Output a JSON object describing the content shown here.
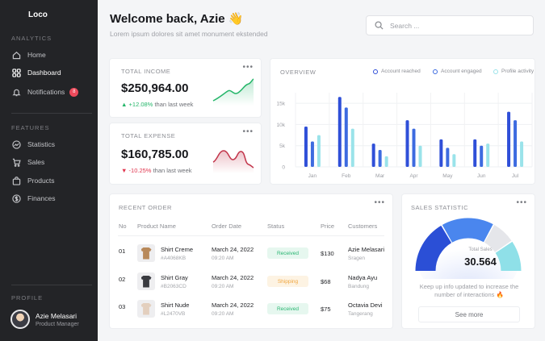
{
  "app": {
    "name": "Loco"
  },
  "sidebar": {
    "analytics_label": "ANALYTICS",
    "features_label": "FEATURES",
    "profile_label": "PROFILE",
    "analytics_items": [
      {
        "label": "Home",
        "icon": "home-icon"
      },
      {
        "label": "Dashboard",
        "icon": "dashboard-icon",
        "active": true
      },
      {
        "label": "Notifications",
        "icon": "bell-icon",
        "badge": "8"
      }
    ],
    "feature_items": [
      {
        "label": "Statistics",
        "icon": "trend-icon"
      },
      {
        "label": "Sales",
        "icon": "cart-icon"
      },
      {
        "label": "Products",
        "icon": "bag-icon"
      },
      {
        "label": "Finances",
        "icon": "dollar-icon"
      }
    ],
    "profile": {
      "name": "Azie Melasari",
      "role": "Product Manager"
    }
  },
  "header": {
    "welcome": "Welcome back,",
    "user": "Azie",
    "emoji": "👋",
    "subtitle": "Lorem ipsum dolores sit amet monument ekstended",
    "search_placeholder": "Search ..."
  },
  "income": {
    "title": "TOTAL INCOME",
    "value": "$250,964.00",
    "delta": "+12.08%",
    "delta_suffix": "than last week",
    "trend": "up",
    "color": "#25b66a"
  },
  "expense": {
    "title": "TOTAL EXPENSE",
    "value": "$160,785.00",
    "delta": "-10.25%",
    "delta_suffix": "than last week",
    "trend": "down",
    "color": "#c2354b"
  },
  "overview": {
    "title": "OVERVIEW",
    "legend": [
      {
        "name": "Account reached",
        "color": "#2f4fd8"
      },
      {
        "name": "Account engaged",
        "color": "#3d6be0"
      },
      {
        "name": "Profile activity",
        "color": "#9ae3ea"
      }
    ]
  },
  "chart_data": {
    "type": "bar",
    "categories": [
      "Jan",
      "Feb",
      "Mar",
      "Apr",
      "May",
      "Jun",
      "Jul"
    ],
    "series": [
      {
        "name": "Account reached",
        "color": "#2f4fd8",
        "values": [
          9500,
          16500,
          5500,
          11000,
          6500,
          6500,
          13000
        ]
      },
      {
        "name": "Account engaged",
        "color": "#3d6be0",
        "values": [
          6000,
          14000,
          4000,
          9000,
          4500,
          5000,
          11000
        ]
      },
      {
        "name": "Profile activity",
        "color": "#9ae3ea",
        "values": [
          7500,
          9000,
          2500,
          5000,
          3000,
          5500,
          6000
        ]
      }
    ],
    "yticks": [
      "0",
      "5k",
      "10k",
      "15k"
    ],
    "ylim": [
      0,
      17500
    ],
    "grid": true
  },
  "recent_order": {
    "title": "RECENT ORDER",
    "columns": [
      "No",
      "Product Name",
      "Order Date",
      "Status",
      "Price",
      "Customers"
    ],
    "rows": [
      {
        "no": "01",
        "product": "Shirt Creme",
        "sku": "#A4068KB",
        "date": "March 24, 2022",
        "time": "09:20 AM",
        "status": "Received",
        "price": "$130",
        "customer": "Azie Melasari",
        "city": "Sragen",
        "shirt_color": "#b8895a"
      },
      {
        "no": "02",
        "product": "Shirt Gray",
        "sku": "#B2063CD",
        "date": "March 24, 2022",
        "time": "09:20 AM",
        "status": "Shipping",
        "price": "$68",
        "customer": "Nadya Ayu",
        "city": "Bandung",
        "shirt_color": "#3a3b40"
      },
      {
        "no": "03",
        "product": "Shirt Nude",
        "sku": "#L2470VB",
        "date": "March 24, 2022",
        "time": "09:20 AM",
        "status": "Received",
        "price": "$75",
        "customer": "Octavia Devi",
        "city": "Tangerang",
        "shirt_color": "#e3cfbe"
      }
    ]
  },
  "sales_statistic": {
    "title": "SALES STATISTIC",
    "gauge_label": "Total Sales",
    "gauge_value": "30.564",
    "description": "Keep up info updated to increase the number of interactions 🔥",
    "see_more": "See more"
  }
}
